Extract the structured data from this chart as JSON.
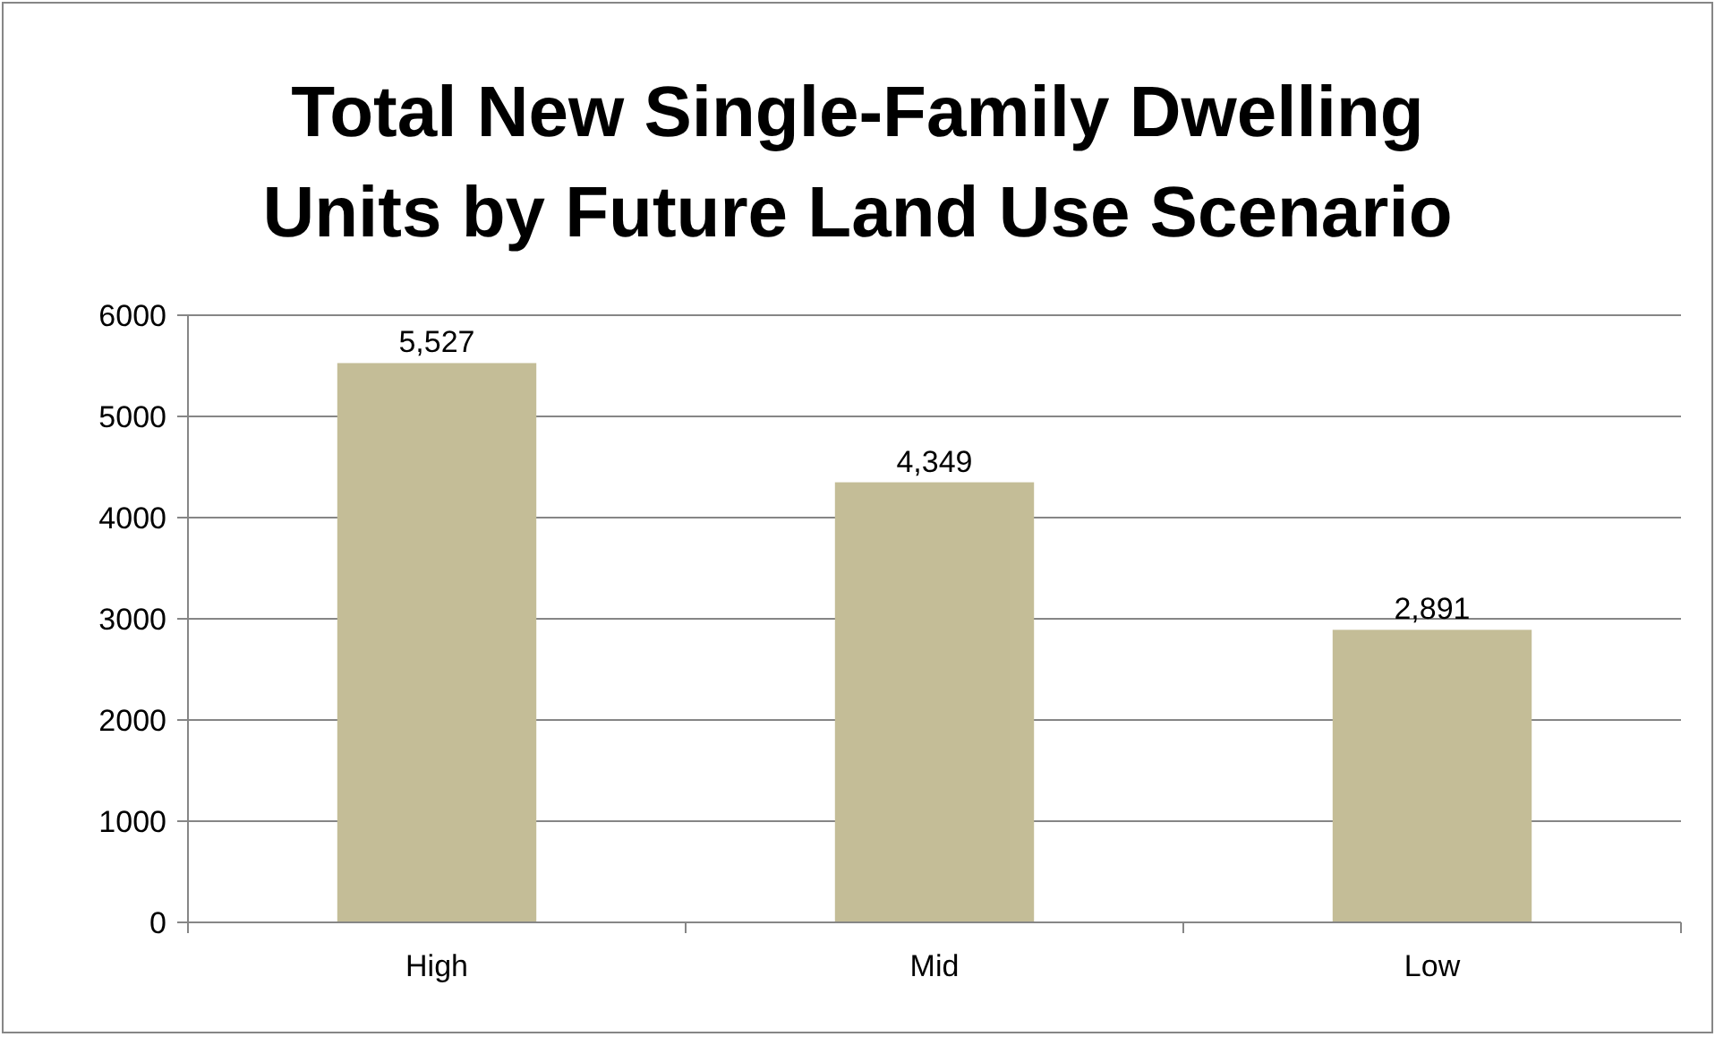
{
  "chart_data": {
    "type": "bar",
    "title": "Total New Single-Family Dwelling Units by Future Land Use Scenario",
    "categories": [
      "High",
      "Mid",
      "Low"
    ],
    "values": [
      5527,
      4349,
      2891
    ],
    "value_labels": [
      "5,527",
      "4,349",
      "2,891"
    ],
    "color": "#c4bd97",
    "ylim": [
      0,
      6000
    ],
    "yticks": [
      0,
      1000,
      2000,
      3000,
      4000,
      5000,
      6000
    ],
    "grid": "y"
  }
}
